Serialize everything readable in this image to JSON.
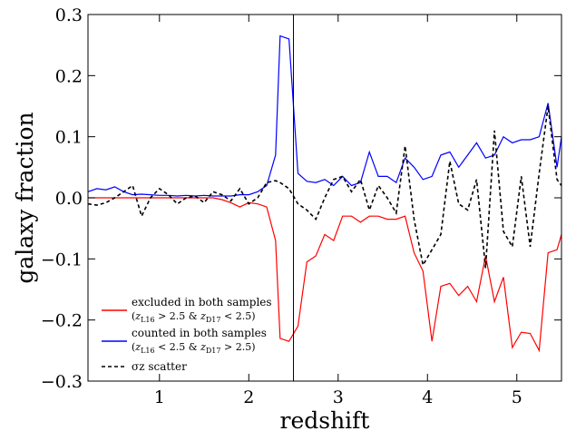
{
  "chart_data": {
    "type": "line",
    "xlabel": "redshift",
    "ylabel": "galaxy fraction",
    "xlim": [
      0.2,
      5.5
    ],
    "ylim": [
      -0.3,
      0.3
    ],
    "xticks": [
      1,
      2,
      3,
      4,
      5
    ],
    "yticks": [
      0.3,
      0.2,
      0.1,
      0.0,
      -0.1,
      -0.2,
      -0.3
    ],
    "xtick_labels": [
      "1",
      "2",
      "3",
      "4",
      "5"
    ],
    "ytick_labels": [
      "0.3",
      "0.2",
      "0.1",
      "0.0",
      "−0.1",
      "−0.2",
      "−0.3"
    ],
    "grid": false,
    "legend_placement": "lower-left",
    "vline_x": 2.5,
    "series": [
      {
        "name": "excluded in both samples",
        "label_sub": "(zL16 > 2.5 & zD17 < 2.5)",
        "color": "#ff0000",
        "style": "solid",
        "x": [
          0.2,
          0.3,
          0.4,
          0.5,
          0.6,
          0.7,
          0.8,
          0.9,
          1.0,
          1.1,
          1.2,
          1.3,
          1.4,
          1.5,
          1.6,
          1.7,
          1.8,
          1.9,
          2.0,
          2.1,
          2.2,
          2.3,
          2.35,
          2.45,
          2.55,
          2.65,
          2.75,
          2.85,
          2.95,
          3.05,
          3.15,
          3.25,
          3.35,
          3.45,
          3.55,
          3.65,
          3.75,
          3.85,
          3.95,
          4.05,
          4.15,
          4.25,
          4.35,
          4.45,
          4.55,
          4.65,
          4.75,
          4.85,
          4.95,
          5.05,
          5.15,
          5.25,
          5.35,
          5.45,
          5.5
        ],
        "y": [
          0.0,
          0.0,
          0.0,
          0.0,
          0.0,
          0.0,
          0.0,
          0.0,
          0.0,
          0.0,
          0.0,
          0.0,
          0.0,
          0.0,
          0.0,
          -0.003,
          -0.008,
          -0.015,
          -0.008,
          -0.01,
          -0.015,
          -0.07,
          -0.23,
          -0.235,
          -0.21,
          -0.105,
          -0.095,
          -0.06,
          -0.07,
          -0.03,
          -0.03,
          -0.04,
          -0.03,
          -0.03,
          -0.035,
          -0.035,
          -0.03,
          -0.09,
          -0.12,
          -0.235,
          -0.145,
          -0.14,
          -0.16,
          -0.145,
          -0.17,
          -0.095,
          -0.17,
          -0.13,
          -0.245,
          -0.22,
          -0.222,
          -0.25,
          -0.09,
          -0.085,
          -0.06
        ]
      },
      {
        "name": "counted in both samples",
        "label_sub": "(zL16 < 2.5 & zD17 > 2.5)",
        "color": "#0000ff",
        "style": "solid",
        "x": [
          0.2,
          0.3,
          0.4,
          0.5,
          0.6,
          0.7,
          0.8,
          0.9,
          1.0,
          1.1,
          1.2,
          1.3,
          1.4,
          1.5,
          1.6,
          1.7,
          1.8,
          1.9,
          2.0,
          2.1,
          2.2,
          2.3,
          2.35,
          2.45,
          2.55,
          2.65,
          2.75,
          2.85,
          2.95,
          3.05,
          3.15,
          3.25,
          3.35,
          3.45,
          3.55,
          3.65,
          3.75,
          3.85,
          3.95,
          4.05,
          4.15,
          4.25,
          4.35,
          4.45,
          4.55,
          4.65,
          4.75,
          4.85,
          4.95,
          5.05,
          5.15,
          5.25,
          5.35,
          5.45,
          5.5
        ],
        "y": [
          0.01,
          0.015,
          0.013,
          0.018,
          0.01,
          0.005,
          0.006,
          0.005,
          0.004,
          0.004,
          0.003,
          0.004,
          0.003,
          0.004,
          0.003,
          0.003,
          0.003,
          0.005,
          0.005,
          0.01,
          0.02,
          0.07,
          0.265,
          0.26,
          0.04,
          0.027,
          0.025,
          0.03,
          0.02,
          0.035,
          0.02,
          0.025,
          0.075,
          0.035,
          0.035,
          0.025,
          0.065,
          0.05,
          0.03,
          0.035,
          0.07,
          0.075,
          0.05,
          0.07,
          0.09,
          0.065,
          0.07,
          0.1,
          0.09,
          0.095,
          0.095,
          0.1,
          0.155,
          0.05,
          0.1
        ]
      },
      {
        "name": "σz scatter",
        "color": "#000000",
        "style": "dashed",
        "x": [
          0.2,
          0.3,
          0.4,
          0.5,
          0.6,
          0.7,
          0.8,
          0.9,
          1.0,
          1.1,
          1.2,
          1.3,
          1.4,
          1.5,
          1.6,
          1.7,
          1.8,
          1.9,
          2.0,
          2.1,
          2.2,
          2.3,
          2.35,
          2.45,
          2.55,
          2.65,
          2.75,
          2.85,
          2.95,
          3.05,
          3.15,
          3.25,
          3.35,
          3.45,
          3.55,
          3.65,
          3.75,
          3.85,
          3.95,
          4.05,
          4.15,
          4.25,
          4.35,
          4.45,
          4.55,
          4.65,
          4.75,
          4.85,
          4.95,
          5.05,
          5.15,
          5.25,
          5.35,
          5.45,
          5.5
        ],
        "y": [
          -0.01,
          -0.012,
          -0.008,
          0.0,
          0.01,
          0.02,
          -0.03,
          0.0,
          0.015,
          0.005,
          -0.01,
          0.0,
          0.003,
          -0.008,
          0.01,
          0.005,
          -0.005,
          0.015,
          -0.01,
          0.0,
          0.025,
          0.028,
          0.025,
          0.015,
          -0.01,
          -0.02,
          -0.035,
          0.0,
          0.03,
          0.035,
          0.01,
          0.03,
          -0.02,
          0.02,
          0.0,
          -0.025,
          0.085,
          -0.035,
          -0.11,
          -0.085,
          -0.06,
          0.06,
          -0.01,
          -0.02,
          0.03,
          -0.115,
          0.11,
          -0.055,
          -0.08,
          0.035,
          -0.08,
          0.04,
          0.15,
          0.03,
          0.02
        ]
      }
    ]
  }
}
